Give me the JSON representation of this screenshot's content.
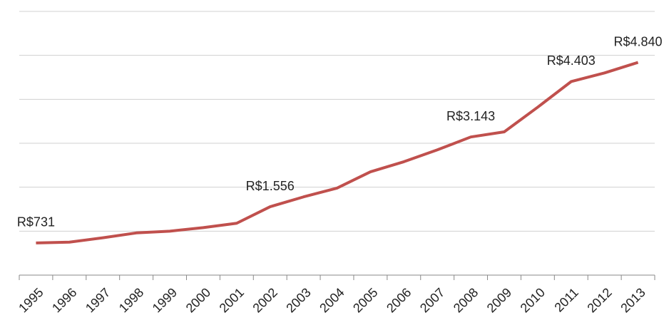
{
  "chart_data": {
    "type": "line",
    "categories": [
      "1995",
      "1996",
      "1997",
      "1998",
      "1999",
      "2000",
      "2001",
      "2002",
      "2003",
      "2004",
      "2005",
      "2006",
      "2007",
      "2008",
      "2009",
      "2010",
      "2011",
      "2012",
      "2013"
    ],
    "series": [
      {
        "color": "#c0504d",
        "values": [
          731,
          750,
          850,
          960,
          1000,
          1080,
          1180,
          1556,
          1780,
          1980,
          2350,
          2580,
          2850,
          3143,
          3260,
          3820,
          4403,
          4600,
          4840
        ],
        "value_labels": [
          "R$731",
          null,
          null,
          null,
          null,
          null,
          null,
          "R$1.556",
          null,
          null,
          null,
          null,
          null,
          "R$3.143",
          null,
          null,
          "R$4.403",
          null,
          "R$4.840"
        ]
      }
    ],
    "ylim": [
      0,
      6000
    ],
    "yticks": [
      0,
      1000,
      2000,
      3000,
      4000,
      5000,
      6000
    ],
    "grid": true
  }
}
